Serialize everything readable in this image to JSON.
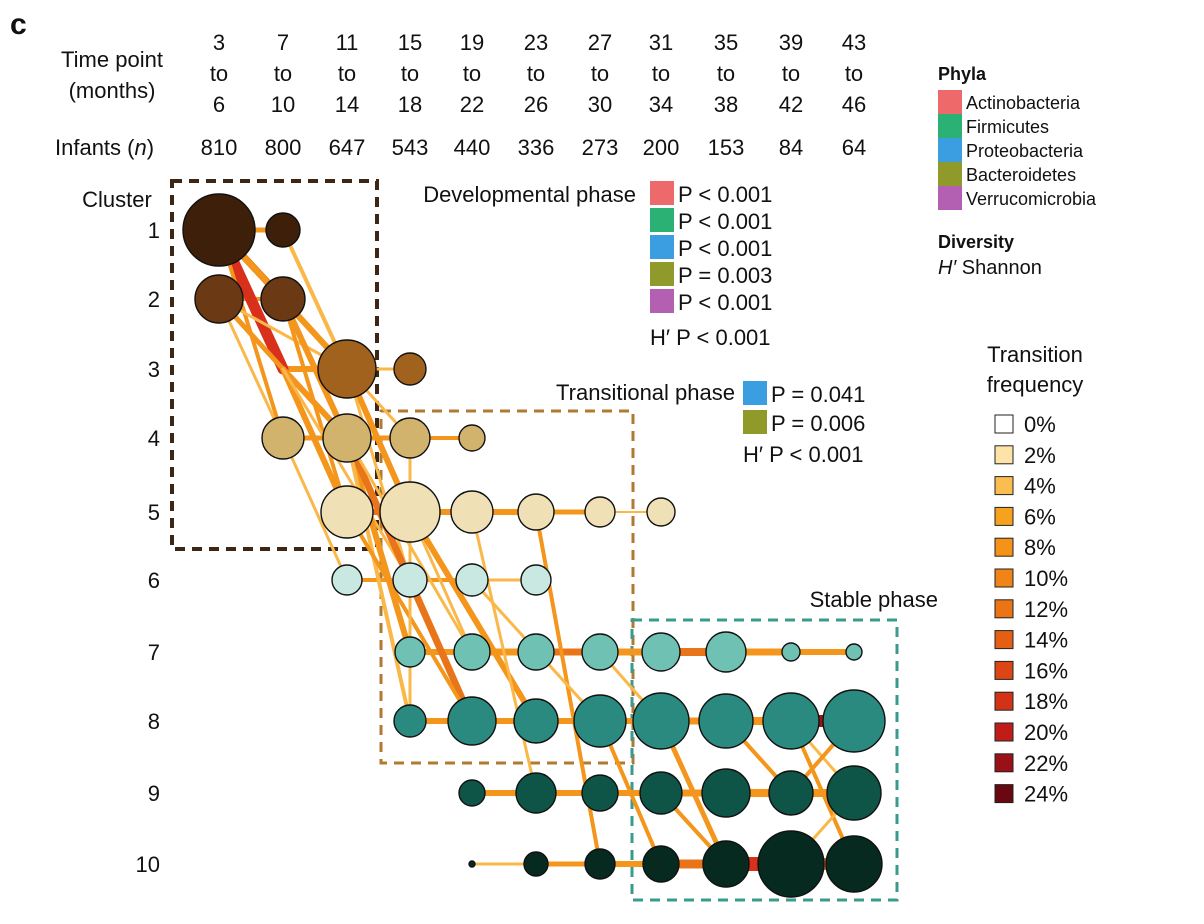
{
  "panel_label": "c",
  "header": {
    "time_label_line1": "Time point",
    "time_label_line2": "(months)",
    "infants_label_pre": "Infants (",
    "infants_label_var": "n",
    "infants_label_post": ")",
    "to_word": "to",
    "time_points": [
      {
        "start": "3",
        "end": "6",
        "n": "810"
      },
      {
        "start": "7",
        "end": "10",
        "n": "800"
      },
      {
        "start": "11",
        "end": "14",
        "n": "647"
      },
      {
        "start": "15",
        "end": "18",
        "n": "543"
      },
      {
        "start": "19",
        "end": "22",
        "n": "440"
      },
      {
        "start": "23",
        "end": "26",
        "n": "336"
      },
      {
        "start": "27",
        "end": "30",
        "n": "273"
      },
      {
        "start": "31",
        "end": "34",
        "n": "200"
      },
      {
        "start": "35",
        "end": "38",
        "n": "153"
      },
      {
        "start": "39",
        "end": "42",
        "n": "84"
      },
      {
        "start": "43",
        "end": "46",
        "n": "64"
      }
    ]
  },
  "cluster_axis": {
    "title": "Cluster",
    "labels": [
      "1",
      "2",
      "3",
      "4",
      "5",
      "6",
      "7",
      "8",
      "9",
      "10"
    ]
  },
  "cluster_colors": [
    "#3e1f0a",
    "#6b3a14",
    "#a0621c",
    "#d2b36e",
    "#efe0b5",
    "#c8e8e1",
    "#6fc2b3",
    "#2a8a80",
    "#0e5548",
    "#062a20"
  ],
  "phases": {
    "developmental": {
      "title": "Developmental phase",
      "box_color": "#3e2614",
      "tests": [
        {
          "phylum": "Actinobacteria",
          "text": "P < 0.001"
        },
        {
          "phylum": "Firmicutes",
          "text": "P < 0.001"
        },
        {
          "phylum": "Proteobacteria",
          "text": "P < 0.001"
        },
        {
          "phylum": "Bacteroidetes",
          "text": "P = 0.003"
        },
        {
          "phylum": "Verrucomicrobia",
          "text": "P < 0.001"
        }
      ],
      "diversity_text": "H′ P < 0.001"
    },
    "transitional": {
      "title": "Transitional phase",
      "box_color": "#b07a30",
      "tests": [
        {
          "phylum": "Proteobacteria",
          "text": "P = 0.041"
        },
        {
          "phylum": "Bacteroidetes",
          "text": "P = 0.006"
        }
      ],
      "diversity_text": "H′ P < 0.001"
    },
    "stable": {
      "title": "Stable phase",
      "box_color": "#3a9a8e"
    }
  },
  "phyla_legend": {
    "title": "Phyla",
    "items": [
      {
        "name": "Actinobacteria",
        "color": "#ee6a6a"
      },
      {
        "name": "Firmicutes",
        "color": "#2bb173"
      },
      {
        "name": "Proteobacteria",
        "color": "#3a9ee0"
      },
      {
        "name": "Bacteroidetes",
        "color": "#8f9a2a"
      },
      {
        "name": "Verrucomicrobia",
        "color": "#b35fb2"
      }
    ]
  },
  "diversity_legend": {
    "title": "Diversity",
    "symbol": "H′",
    "text": " Shannon"
  },
  "transition_legend": {
    "title_line1": "Transition",
    "title_line2": "frequency",
    "items": [
      {
        "label": "0%",
        "color": "#ffffff"
      },
      {
        "label": "2%",
        "color": "#fde3a7"
      },
      {
        "label": "4%",
        "color": "#fbbd4f"
      },
      {
        "label": "6%",
        "color": "#f7a21e"
      },
      {
        "label": "8%",
        "color": "#f49318"
      },
      {
        "label": "10%",
        "color": "#f08416"
      },
      {
        "label": "12%",
        "color": "#eb7414"
      },
      {
        "label": "14%",
        "color": "#e45e14"
      },
      {
        "label": "16%",
        "color": "#dc4615"
      },
      {
        "label": "18%",
        "color": "#d43216"
      },
      {
        "label": "20%",
        "color": "#c21c18"
      },
      {
        "label": "22%",
        "color": "#9a1018"
      },
      {
        "label": "24%",
        "color": "#6a0812"
      }
    ]
  }
}
